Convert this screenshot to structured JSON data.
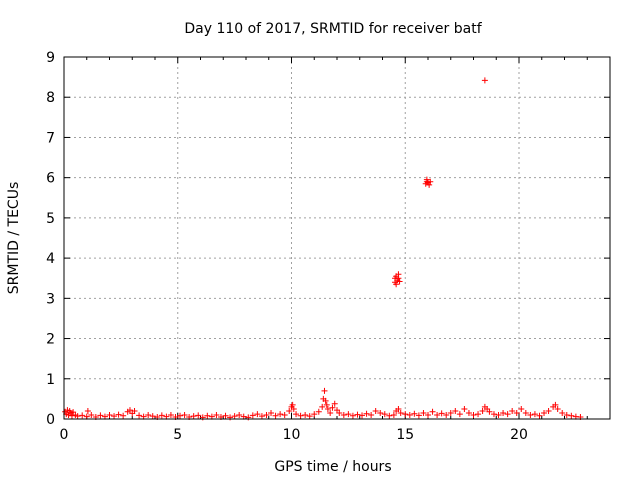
{
  "chart_data": {
    "type": "scatter",
    "title": "Day 110 of 2017, SRMTID for receiver batf",
    "xlabel": "GPS time / hours",
    "ylabel": "SRMTID / TECUs",
    "xlim": [
      0,
      24
    ],
    "ylim": [
      0,
      9
    ],
    "xticks": [
      0,
      5,
      10,
      15,
      20
    ],
    "yticks": [
      0,
      1,
      2,
      3,
      4,
      5,
      6,
      7,
      8,
      9
    ],
    "grid": true,
    "marker": "plus",
    "marker_color": "#ff0000",
    "series": [
      {
        "values": [
          [
            0.05,
            0.18
          ],
          [
            0.1,
            0.12
          ],
          [
            0.15,
            0.22
          ],
          [
            0.2,
            0.1
          ],
          [
            0.25,
            0.2
          ],
          [
            0.3,
            0.15
          ],
          [
            0.35,
            0.08
          ],
          [
            0.4,
            0.17
          ],
          [
            0.5,
            0.1
          ],
          [
            0.6,
            0.07
          ],
          [
            0.8,
            0.09
          ],
          [
            1.0,
            0.06
          ],
          [
            1.05,
            0.2
          ],
          [
            1.2,
            0.1
          ],
          [
            1.4,
            0.05
          ],
          [
            1.6,
            0.09
          ],
          [
            1.8,
            0.06
          ],
          [
            2.0,
            0.1
          ],
          [
            2.2,
            0.07
          ],
          [
            2.4,
            0.11
          ],
          [
            2.6,
            0.08
          ],
          [
            2.8,
            0.18
          ],
          [
            2.9,
            0.22
          ],
          [
            3.0,
            0.14
          ],
          [
            3.1,
            0.2
          ],
          [
            3.3,
            0.09
          ],
          [
            3.5,
            0.06
          ],
          [
            3.7,
            0.1
          ],
          [
            3.9,
            0.07
          ],
          [
            4.1,
            0.05
          ],
          [
            4.3,
            0.09
          ],
          [
            4.5,
            0.06
          ],
          [
            4.7,
            0.1
          ],
          [
            4.9,
            0.05
          ],
          [
            5.1,
            0.08
          ],
          [
            5.3,
            0.1
          ],
          [
            5.5,
            0.05
          ],
          [
            5.7,
            0.07
          ],
          [
            5.9,
            0.09
          ],
          [
            6.1,
            0.04
          ],
          [
            6.3,
            0.08
          ],
          [
            6.5,
            0.06
          ],
          [
            6.7,
            0.1
          ],
          [
            6.9,
            0.05
          ],
          [
            7.1,
            0.08
          ],
          [
            7.3,
            0.04
          ],
          [
            7.5,
            0.07
          ],
          [
            7.7,
            0.1
          ],
          [
            7.9,
            0.06
          ],
          [
            8.1,
            0.04
          ],
          [
            8.3,
            0.09
          ],
          [
            8.5,
            0.12
          ],
          [
            8.7,
            0.07
          ],
          [
            8.9,
            0.1
          ],
          [
            9.1,
            0.15
          ],
          [
            9.3,
            0.08
          ],
          [
            9.5,
            0.12
          ],
          [
            9.7,
            0.1
          ],
          [
            9.9,
            0.2
          ],
          [
            10.0,
            0.3
          ],
          [
            10.05,
            0.35
          ],
          [
            10.1,
            0.25
          ],
          [
            10.2,
            0.12
          ],
          [
            10.4,
            0.08
          ],
          [
            10.6,
            0.1
          ],
          [
            10.8,
            0.07
          ],
          [
            11.0,
            0.12
          ],
          [
            11.2,
            0.18
          ],
          [
            11.35,
            0.3
          ],
          [
            11.4,
            0.5
          ],
          [
            11.45,
            0.7
          ],
          [
            11.5,
            0.45
          ],
          [
            11.55,
            0.35
          ],
          [
            11.6,
            0.25
          ],
          [
            11.7,
            0.15
          ],
          [
            11.8,
            0.28
          ],
          [
            11.9,
            0.38
          ],
          [
            12.0,
            0.22
          ],
          [
            12.1,
            0.15
          ],
          [
            12.3,
            0.1
          ],
          [
            12.5,
            0.12
          ],
          [
            12.7,
            0.08
          ],
          [
            12.9,
            0.11
          ],
          [
            13.1,
            0.09
          ],
          [
            13.3,
            0.13
          ],
          [
            13.5,
            0.1
          ],
          [
            13.7,
            0.2
          ],
          [
            13.9,
            0.15
          ],
          [
            14.1,
            0.12
          ],
          [
            14.3,
            0.08
          ],
          [
            14.5,
            0.1
          ],
          [
            14.6,
            0.2
          ],
          [
            14.7,
            0.25
          ],
          [
            14.8,
            0.15
          ],
          [
            15.0,
            0.12
          ],
          [
            15.2,
            0.1
          ],
          [
            15.4,
            0.13
          ],
          [
            15.6,
            0.09
          ],
          [
            15.8,
            0.15
          ],
          [
            16.0,
            0.1
          ],
          [
            16.2,
            0.18
          ],
          [
            16.4,
            0.1
          ],
          [
            16.6,
            0.14
          ],
          [
            16.8,
            0.1
          ],
          [
            17.0,
            0.15
          ],
          [
            17.2,
            0.2
          ],
          [
            17.4,
            0.12
          ],
          [
            17.6,
            0.25
          ],
          [
            17.8,
            0.15
          ],
          [
            18.0,
            0.1
          ],
          [
            18.2,
            0.12
          ],
          [
            18.4,
            0.2
          ],
          [
            18.5,
            0.3
          ],
          [
            18.6,
            0.25
          ],
          [
            18.7,
            0.18
          ],
          [
            18.9,
            0.12
          ],
          [
            19.1,
            0.1
          ],
          [
            19.3,
            0.15
          ],
          [
            19.5,
            0.12
          ],
          [
            19.7,
            0.2
          ],
          [
            19.9,
            0.15
          ],
          [
            20.1,
            0.25
          ],
          [
            20.3,
            0.15
          ],
          [
            20.5,
            0.1
          ],
          [
            20.7,
            0.12
          ],
          [
            20.9,
            0.08
          ],
          [
            21.1,
            0.15
          ],
          [
            21.3,
            0.2
          ],
          [
            21.5,
            0.3
          ],
          [
            21.6,
            0.35
          ],
          [
            21.7,
            0.25
          ],
          [
            21.9,
            0.15
          ],
          [
            22.1,
            0.1
          ],
          [
            22.3,
            0.08
          ],
          [
            22.5,
            0.06
          ],
          [
            22.7,
            0.05
          ],
          [
            14.55,
            3.4
          ],
          [
            14.6,
            3.55
          ],
          [
            14.65,
            3.45
          ],
          [
            14.7,
            3.5
          ],
          [
            14.75,
            3.42
          ],
          [
            14.6,
            3.35
          ],
          [
            14.7,
            3.6
          ],
          [
            14.55,
            3.5
          ],
          [
            15.9,
            5.85
          ],
          [
            15.95,
            5.9
          ],
          [
            16.0,
            5.88
          ],
          [
            16.05,
            5.82
          ],
          [
            16.1,
            5.9
          ],
          [
            15.95,
            5.95
          ],
          [
            18.5,
            8.42
          ]
        ]
      }
    ]
  }
}
